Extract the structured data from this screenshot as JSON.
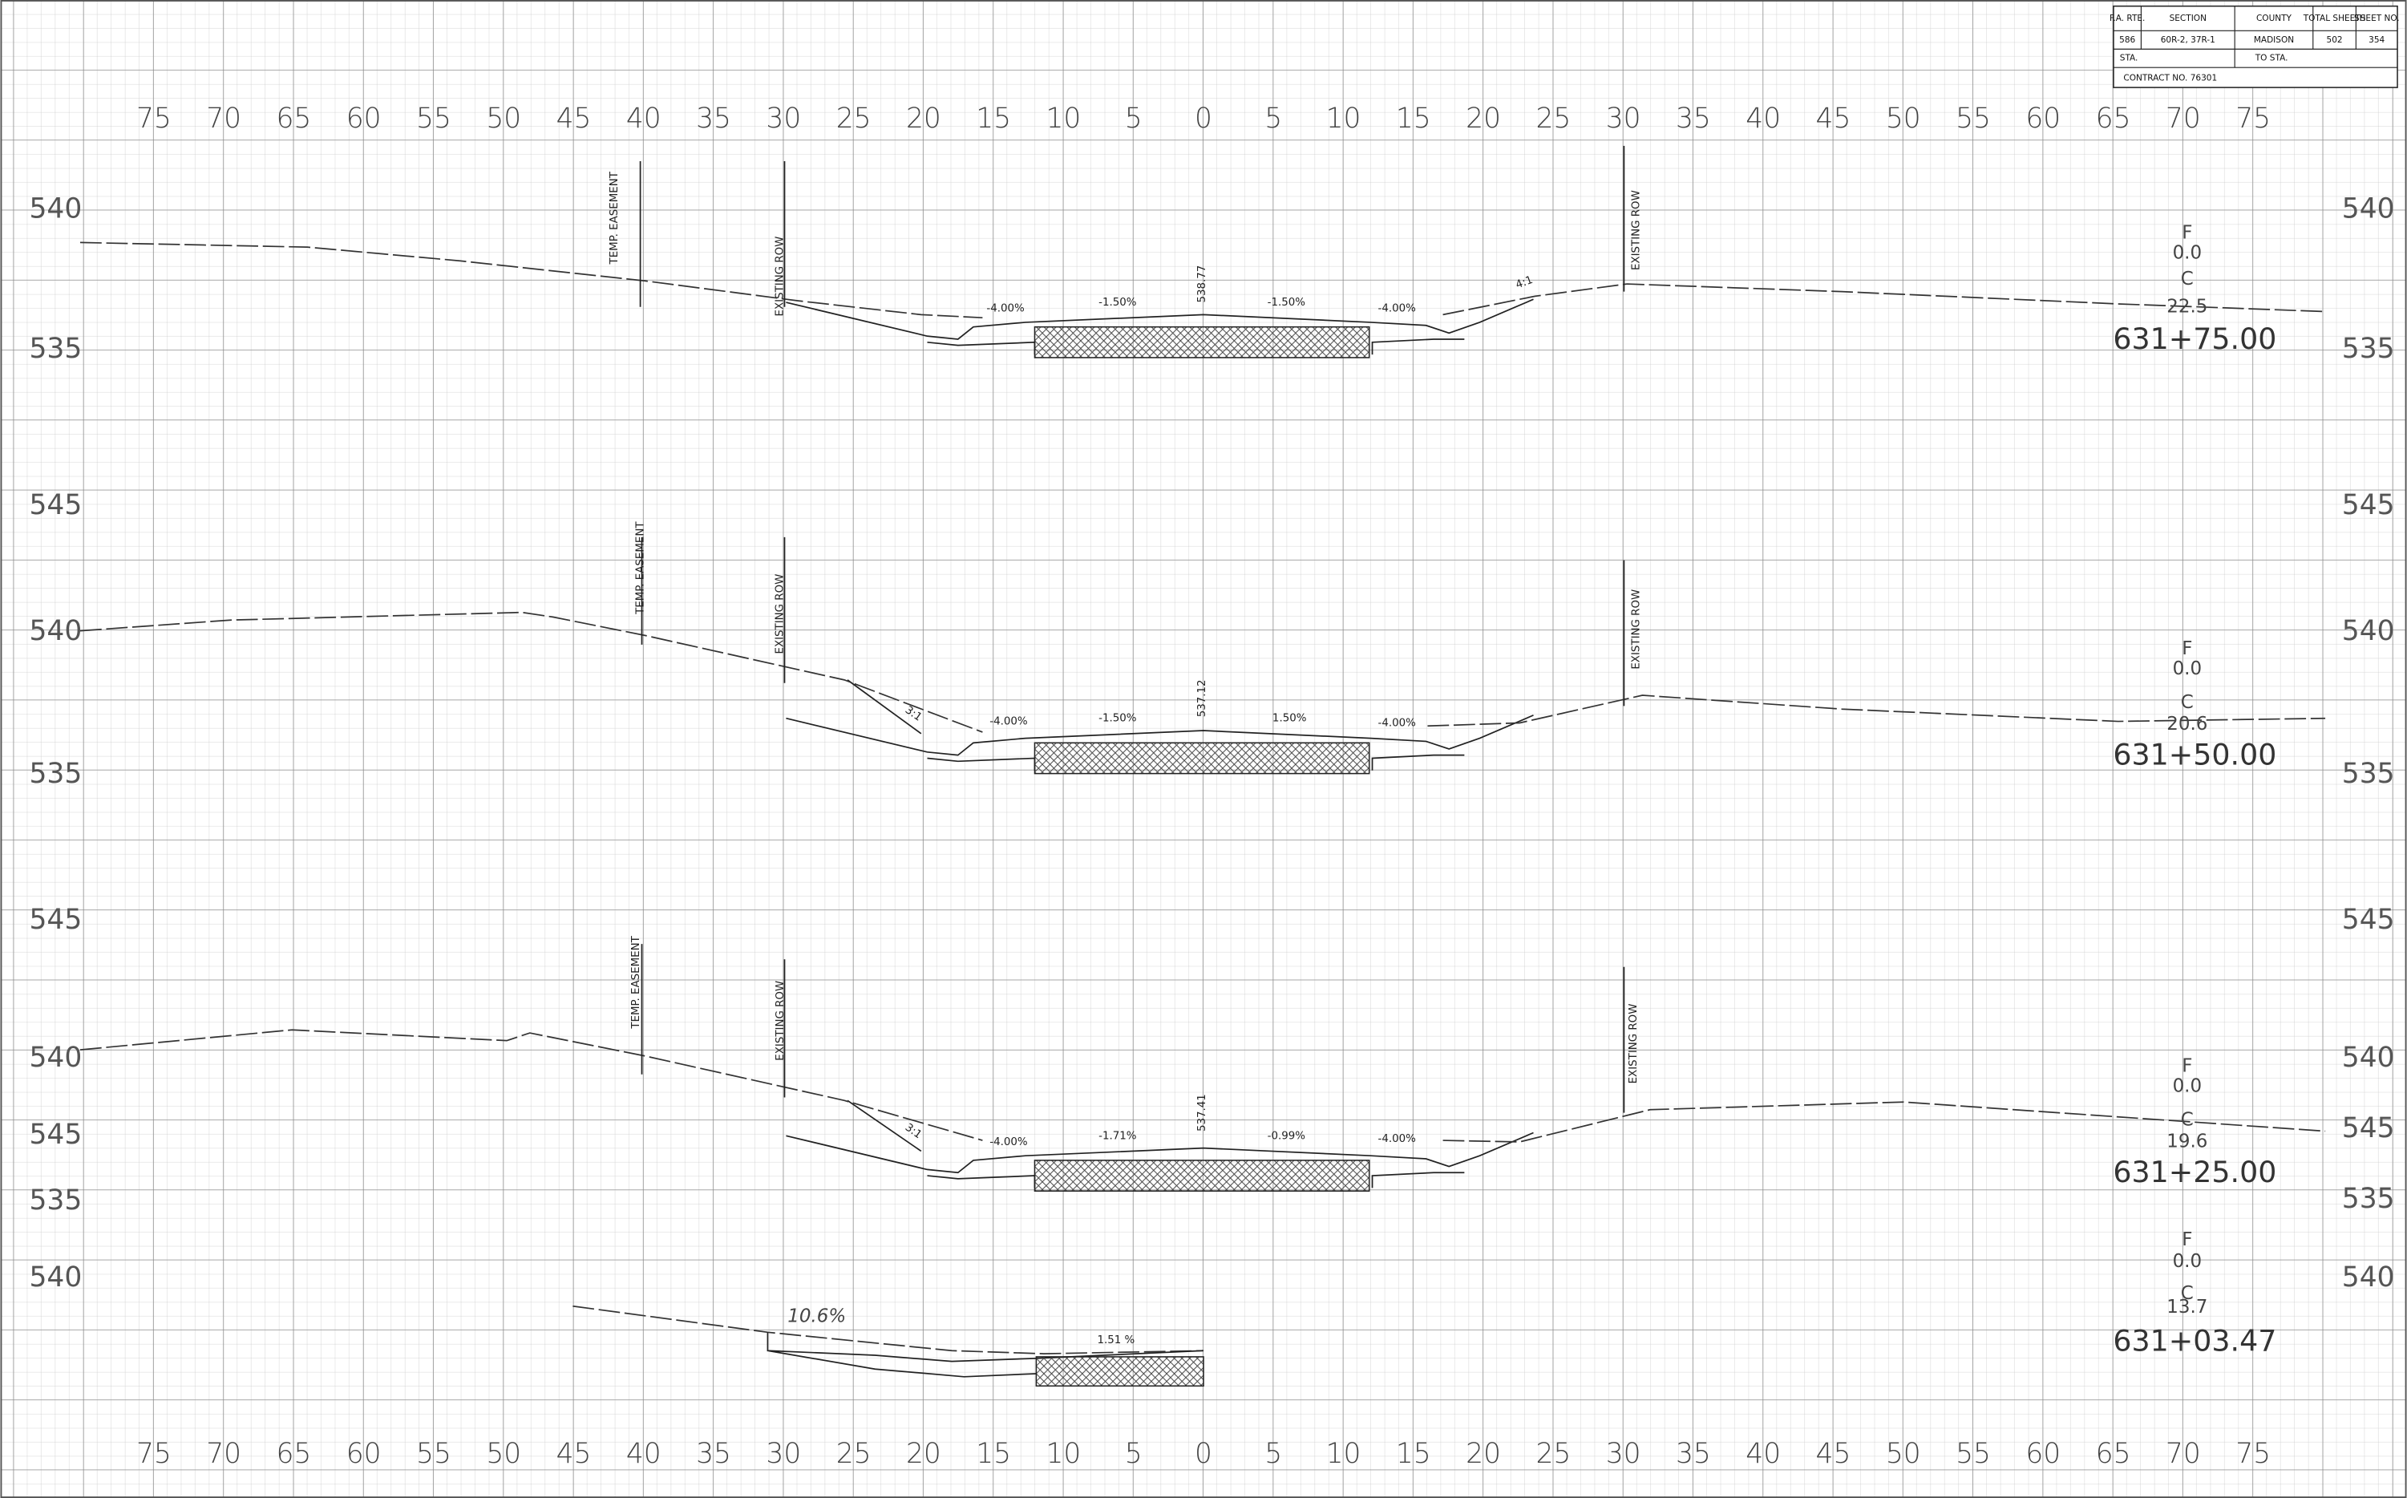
{
  "title_block": {
    "headers": [
      "F.A. RTE.",
      "SECTION",
      "COUNTY",
      "TOTAL SHEETS",
      "SHEET NO."
    ],
    "values": [
      "586",
      "60R-2, 37R-1",
      "MADISON",
      "502",
      "354"
    ],
    "sta": "STA.",
    "to_sta": "TO STA.",
    "contract": "CONTRACT NO. 76301"
  },
  "offset_labels": [
    75,
    70,
    65,
    60,
    55,
    50,
    45,
    40,
    35,
    30,
    25,
    20,
    15,
    10,
    5,
    0,
    5,
    10,
    15,
    20,
    25,
    30,
    35,
    40,
    45,
    50,
    55,
    60,
    65,
    70,
    75
  ],
  "sections": [
    {
      "station": "631+75.00",
      "fill_label": "F",
      "fill": "0.0",
      "cut_label": "C",
      "cut": "22.5",
      "left_elevations": [
        "540",
        "535"
      ],
      "right_elevations": [
        "540",
        "535"
      ],
      "slopes": [
        "-4.00%",
        "-1.50%",
        "-1.50%",
        "-4.00%"
      ],
      "centerline_elevation": "538.77",
      "side_slope": "4:1",
      "temp_easement": "TEMP. EASEMENT",
      "existing_row": "EXISTING ROW",
      "existing_row_right": "EXISTING ROW"
    },
    {
      "station": "631+50.00",
      "fill_label": "F",
      "fill": "0.0",
      "cut_label": "C",
      "cut": "20.6",
      "left_elevations": [
        "545",
        "540",
        "535"
      ],
      "right_elevations": [
        "545",
        "540",
        "535"
      ],
      "slopes": [
        "-4.00%",
        "-1.50%",
        "1.50%",
        "-4.00%"
      ],
      "centerline_elevation": "537.12",
      "side_slope": "3:1",
      "temp_easement": "TEMP. EASEMENT",
      "existing_row": "EXISTING ROW",
      "existing_row_right": "EXISTING ROW"
    },
    {
      "station": "631+25.00",
      "fill_label": "F",
      "fill": "0.0",
      "cut_label": "C",
      "cut": "19.6",
      "left_elevations": [
        "545",
        "540",
        "545",
        "535"
      ],
      "right_elevations": [
        "545",
        "540",
        "545",
        "535"
      ],
      "slopes": [
        "-4.00%",
        "-1.71%",
        "-0.99%",
        "-4.00%"
      ],
      "centerline_elevation": "537.41",
      "side_slope": "3:1",
      "temp_easement": "TEMP. EASEMENT",
      "existing_row": "EXISTING ROW",
      "existing_row_right": "EXISTING ROW"
    },
    {
      "station": "631+03.47",
      "fill_label": "F",
      "fill": "0.0",
      "cut_label": "C",
      "cut": "13.7",
      "left_elevations": [
        "540"
      ],
      "right_elevations": [
        "540"
      ],
      "slopes": [
        "10.6%",
        "1.51 %"
      ]
    }
  ]
}
